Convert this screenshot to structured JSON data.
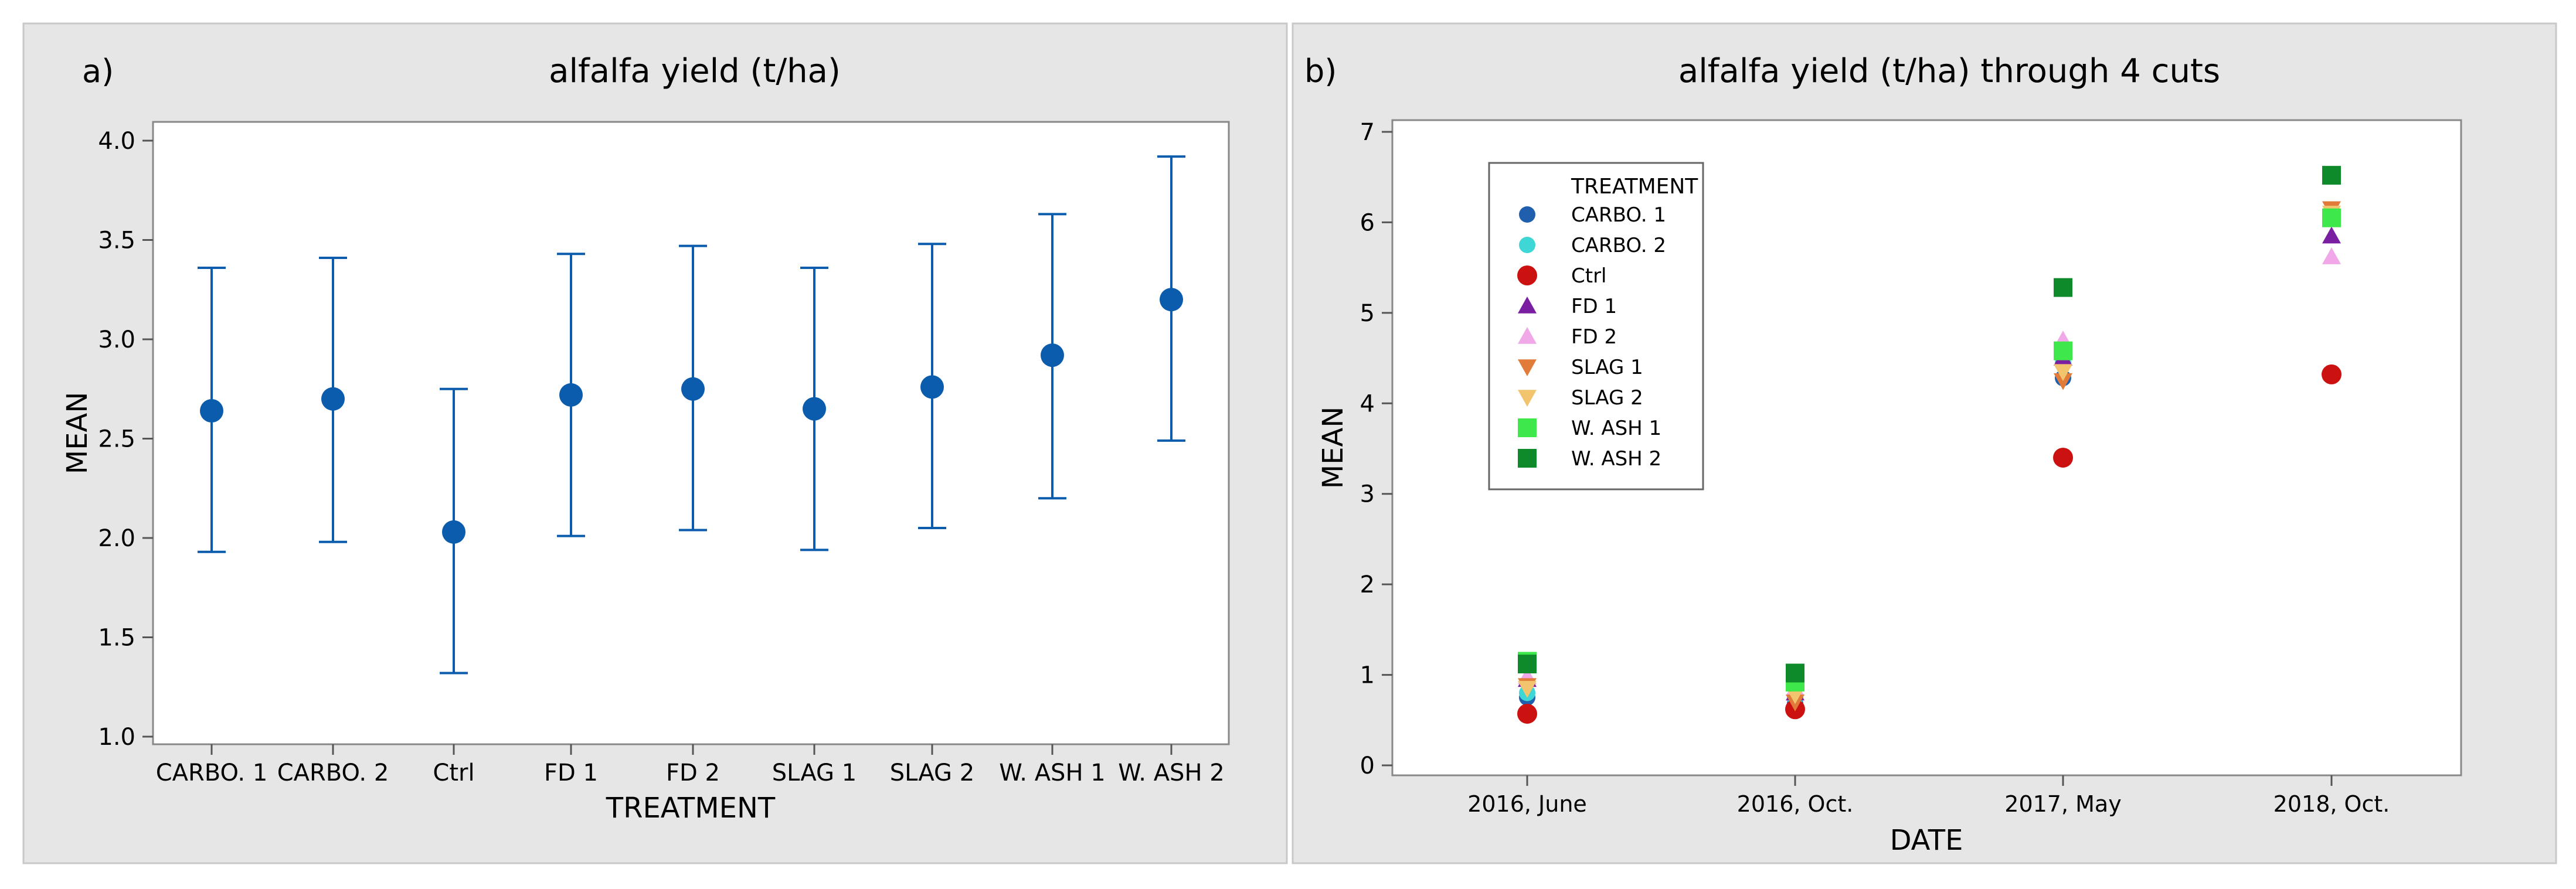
{
  "chart_data": [
    {
      "panel_label": "a)",
      "type": "interval",
      "title": "alfalfa yield (t/ha)",
      "xlabel": "TREATMENT",
      "ylabel": "MEAN",
      "ylim": [
        0.95,
        4.05
      ],
      "yticks": [
        1.0,
        1.5,
        2.0,
        2.5,
        3.0,
        3.5,
        4.0
      ],
      "ytick_labels": [
        "1.0",
        "1.5",
        "2.0",
        "2.5",
        "3.0",
        "3.5",
        "4.0"
      ],
      "categories": [
        "CARBO. 1",
        "CARBO. 2",
        "Ctrl",
        "FD 1",
        "FD 2",
        "SLAG 1",
        "SLAG 2",
        "W. ASH 1",
        "W. ASH 2"
      ],
      "means": [
        2.64,
        2.7,
        2.03,
        2.72,
        2.75,
        2.65,
        2.76,
        2.92,
        3.2
      ],
      "lower": [
        1.93,
        1.98,
        1.32,
        2.01,
        2.04,
        1.94,
        2.05,
        2.2,
        2.49
      ],
      "upper": [
        3.36,
        3.41,
        2.75,
        3.43,
        3.47,
        3.36,
        3.48,
        3.63,
        3.92
      ],
      "color": "#0B5CAD"
    },
    {
      "panel_label": "b)",
      "type": "scatter",
      "title": "alfalfa yield (t/ha) through 4 cuts",
      "xlabel": "DATE",
      "ylabel": "MEAN",
      "ylim": [
        -0.2,
        7.1
      ],
      "yticks": [
        0,
        1,
        2,
        3,
        4,
        5,
        6,
        7
      ],
      "ytick_labels": [
        "0",
        "1",
        "2",
        "3",
        "4",
        "5",
        "6",
        "7"
      ],
      "categories": [
        "2016, June",
        "2016, Oct.",
        "2017, May",
        "2018, Oct."
      ],
      "legend_title": "TREATMENT",
      "legend_position": "top-left",
      "series": [
        {
          "name": "CARBO. 1",
          "marker": "circle",
          "color": "#1F5FAD",
          "values": [
            0.75,
            0.68,
            4.28,
            6.05
          ]
        },
        {
          "name": "CARBO. 2",
          "marker": "circle",
          "color": "#3FD6D6",
          "values": [
            0.8,
            0.75,
            4.45,
            6.1
          ]
        },
        {
          "name": "Ctrl",
          "marker": "circle-large",
          "color": "#CC1111",
          "values": [
            0.57,
            0.62,
            3.4,
            4.32
          ]
        },
        {
          "name": "FD 1",
          "marker": "triangle-up",
          "color": "#7B1FA2",
          "values": [
            0.95,
            0.8,
            4.5,
            5.85
          ]
        },
        {
          "name": "FD 2",
          "marker": "triangle-up",
          "color": "#F0A8E8",
          "values": [
            0.98,
            0.85,
            4.7,
            5.62
          ]
        },
        {
          "name": "SLAG 1",
          "marker": "triangle-down",
          "color": "#E07B3A",
          "values": [
            0.88,
            0.7,
            4.25,
            6.15
          ]
        },
        {
          "name": "SLAG 2",
          "marker": "triangle-down",
          "color": "#F2C46E",
          "values": [
            0.85,
            0.78,
            4.35,
            6.1
          ]
        },
        {
          "name": "W. ASH 1",
          "marker": "square",
          "color": "#3FE84A",
          "values": [
            1.15,
            0.92,
            4.58,
            6.05
          ]
        },
        {
          "name": "W. ASH 2",
          "marker": "square",
          "color": "#0E8A2A",
          "values": [
            1.12,
            1.02,
            5.28,
            6.52
          ]
        }
      ]
    }
  ]
}
